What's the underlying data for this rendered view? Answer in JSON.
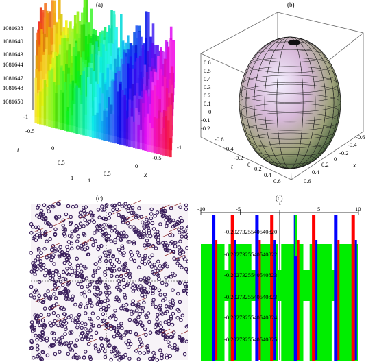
{
  "chart_data": [
    {
      "panel": "a",
      "label": "(a)",
      "type": "surface",
      "z_ticks": [
        "1081638",
        "1081640",
        "1081643",
        "1081644",
        "1081647",
        "1081648",
        "1081650"
      ],
      "t_ticks": [
        "-1",
        "-0.5",
        "0",
        "0.5",
        "1"
      ],
      "x_ticks": [
        "-1",
        "-0.5",
        "0",
        "0.5",
        "1"
      ],
      "xlabel": "x",
      "tlabel": "t"
    },
    {
      "panel": "b",
      "label": "(b)",
      "type": "surface",
      "z_ticks": [
        "0.6",
        "0.5",
        "0.4",
        "0.3",
        "0.2",
        "0.1",
        "0",
        "-0.1",
        "-0.2"
      ],
      "t_ticks": [
        "-0.6",
        "-0.4",
        "-0.2",
        "0",
        "0.2",
        "0.4",
        "0.6"
      ],
      "x_ticks": [
        "-0.6",
        "-0.4",
        "-0.2",
        "0",
        "0.2",
        "0.4",
        "0.6"
      ],
      "xlabel": "x",
      "tlabel": "t"
    },
    {
      "panel": "c",
      "label": "(c)",
      "type": "scatter",
      "color": "#3a1f5c"
    },
    {
      "panel": "d",
      "label": "(d)",
      "type": "line",
      "x_ticks": [
        -10,
        -5,
        0,
        5,
        10
      ],
      "tlabel": "t",
      "y_ticks": [
        "-0.202732554054082",
        "-0.202732554054082",
        "-0.202732554054082",
        "-0.202732554054082",
        "-0.202732554054082",
        "-0.202732554054082"
      ],
      "y_tick_labels": [
        "-0.2027325540540820",
        "-0.2027325540540822",
        "-0.2027325540540823",
        "-0.2027325540540823",
        "-0.2027325540540824",
        "-0.2027325540540825"
      ],
      "series_colors": [
        "#0000ff",
        "#ff0000",
        "#00ee00"
      ]
    }
  ]
}
